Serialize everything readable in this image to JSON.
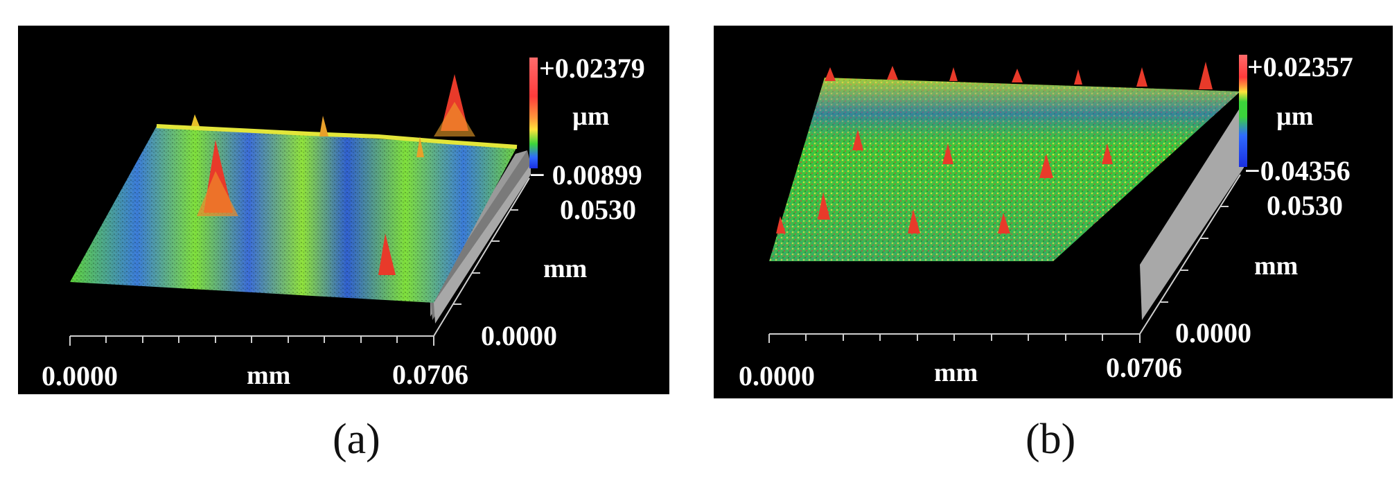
{
  "figure": {
    "panels": [
      {
        "id": "a",
        "caption": "(a)",
        "colorbar": {
          "max_label": "+0.02379",
          "unit": "µm",
          "min_label": "− 0.00899",
          "colors": [
            "#ff3b3b",
            "#ff9a3b",
            "#ffe23b",
            "#3bd43b",
            "#2f6bff",
            "#1a2fe0"
          ]
        },
        "y_axis": {
          "max": "0.0530",
          "unit": "mm",
          "min": "0.0000"
        },
        "x_axis": {
          "min": "0.0000",
          "unit": "mm",
          "max": "0.0706"
        }
      },
      {
        "id": "b",
        "caption": "(b)",
        "colorbar": {
          "max_label": "+0.02357",
          "unit": "µm",
          "min_label": "−0.04356",
          "colors": [
            "#ff3b3b",
            "#ff9a3b",
            "#ffe23b",
            "#3bd43b",
            "#2f6bff",
            "#1a2fe0"
          ]
        },
        "y_axis": {
          "max": "0.0530",
          "unit": "mm",
          "min": "0.0000"
        },
        "x_axis": {
          "min": "0.0000",
          "unit": "mm",
          "max": "0.0706"
        }
      }
    ]
  }
}
